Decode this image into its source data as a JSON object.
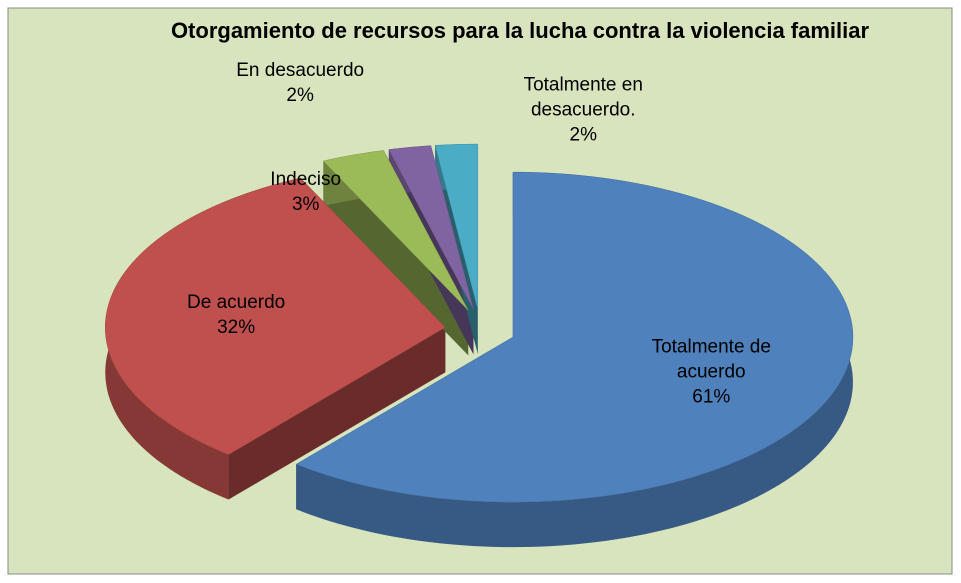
{
  "chart_data": {
    "type": "pie",
    "title": "Otorgamiento de recursos para la lucha contra la violencia familiar",
    "categories": [
      "Totalmente de acuerdo",
      "De acuerdo",
      "Indeciso",
      "En desacuerdo",
      "Totalmente en desacuerdo."
    ],
    "values": [
      61,
      32,
      3,
      2,
      2
    ],
    "value_labels": [
      "61%",
      "32%",
      "3%",
      "2%",
      "2%"
    ],
    "colors": [
      "#4f81bd",
      "#c0504d",
      "#9bbb59",
      "#8064a2",
      "#4bacc6"
    ],
    "style": "3d-exploded"
  }
}
